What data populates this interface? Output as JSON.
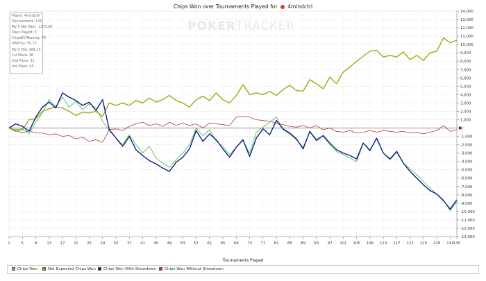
{
  "chart_data": {
    "type": "line",
    "title": "Chips Won over Tournaments Played for",
    "player": "4mindctrl",
    "xlabel": "Tournaments Played",
    "ylabel": "",
    "xlim": [
      1,
      135
    ],
    "ylim": [
      -13000,
      14000
    ],
    "x_ticks": [
      "1",
      "5",
      "9",
      "13",
      "17",
      "21",
      "25",
      "29",
      "33",
      "37",
      "41",
      "45",
      "49",
      "53",
      "57",
      "61",
      "65",
      "69",
      "73",
      "77",
      "81",
      "85",
      "89",
      "93",
      "97",
      "101",
      "105",
      "109",
      "113",
      "117",
      "121",
      "125",
      "129",
      "133",
      "135"
    ],
    "y_ticks": [
      "14,000",
      "13,000",
      "12,000",
      "11,000",
      "10,000",
      "9,000",
      "8,000",
      "7,000",
      "6,000",
      "5,000",
      "4,000",
      "3,000",
      "2,000",
      "1,000",
      "0",
      "-1,000",
      "-2,000",
      "-3,000",
      "-4,000",
      "-5,000",
      "-6,000",
      "-7,000",
      "-8,000",
      "-9,000",
      "-10,000",
      "-11,000",
      "-12,000",
      "-13,000"
    ],
    "grid": true,
    "legend_position": "bottom",
    "series": [
      {
        "name": "Chips Won",
        "color": "#5cc85c",
        "points": [
          [
            1,
            0
          ],
          [
            3,
            -200
          ],
          [
            5,
            -100
          ],
          [
            7,
            -700
          ],
          [
            9,
            700
          ],
          [
            11,
            1800
          ],
          [
            13,
            3400
          ],
          [
            15,
            2600
          ],
          [
            17,
            3700
          ],
          [
            19,
            2500
          ],
          [
            21,
            3200
          ],
          [
            23,
            2200
          ],
          [
            25,
            2900
          ],
          [
            27,
            2400
          ],
          [
            29,
            800
          ],
          [
            31,
            -300
          ],
          [
            33,
            -1200
          ],
          [
            35,
            -2000
          ],
          [
            37,
            -800
          ],
          [
            39,
            -2000
          ],
          [
            41,
            -3000
          ],
          [
            43,
            -2200
          ],
          [
            45,
            -3600
          ],
          [
            47,
            -4200
          ],
          [
            49,
            -4700
          ],
          [
            51,
            -3800
          ],
          [
            53,
            -3000
          ],
          [
            55,
            -2000
          ],
          [
            57,
            0
          ],
          [
            59,
            -900
          ],
          [
            61,
            -200
          ],
          [
            63,
            -1600
          ],
          [
            65,
            -2200
          ],
          [
            67,
            -3200
          ],
          [
            69,
            -2300
          ],
          [
            71,
            -1500
          ],
          [
            73,
            -3000
          ],
          [
            75,
            -500
          ],
          [
            77,
            100
          ],
          [
            79,
            700
          ],
          [
            81,
            1300
          ],
          [
            83,
            -200
          ],
          [
            85,
            -700
          ],
          [
            87,
            -1400
          ],
          [
            89,
            -2300
          ],
          [
            91,
            -500
          ],
          [
            93,
            -1300
          ],
          [
            95,
            -1000
          ],
          [
            97,
            -2000
          ],
          [
            99,
            -2800
          ],
          [
            101,
            -3200
          ],
          [
            103,
            -3600
          ],
          [
            105,
            -4000
          ],
          [
            107,
            -1800
          ],
          [
            109,
            -2600
          ],
          [
            111,
            -1300
          ],
          [
            113,
            -3000
          ],
          [
            115,
            -3800
          ],
          [
            117,
            -2900
          ],
          [
            119,
            -4200
          ],
          [
            121,
            -4900
          ],
          [
            123,
            -5600
          ],
          [
            125,
            -6400
          ],
          [
            127,
            -7200
          ],
          [
            129,
            -7900
          ],
          [
            131,
            -8600
          ],
          [
            133,
            -9900
          ],
          [
            135,
            -8800
          ]
        ]
      },
      {
        "name": "Net Expected Chips Won",
        "color": "#a5a50f",
        "points": [
          [
            1,
            0
          ],
          [
            3,
            -400
          ],
          [
            5,
            -200
          ],
          [
            7,
            1000
          ],
          [
            9,
            1100
          ],
          [
            11,
            2000
          ],
          [
            13,
            2300
          ],
          [
            15,
            2500
          ],
          [
            17,
            2400
          ],
          [
            19,
            2000
          ],
          [
            21,
            1500
          ],
          [
            23,
            1900
          ],
          [
            25,
            1800
          ],
          [
            27,
            2000
          ],
          [
            29,
            1400
          ],
          [
            31,
            3000
          ],
          [
            33,
            2700
          ],
          [
            35,
            3000
          ],
          [
            37,
            2700
          ],
          [
            39,
            3300
          ],
          [
            41,
            3000
          ],
          [
            43,
            3600
          ],
          [
            45,
            3100
          ],
          [
            47,
            3400
          ],
          [
            49,
            3900
          ],
          [
            51,
            3300
          ],
          [
            53,
            3000
          ],
          [
            55,
            2500
          ],
          [
            57,
            3400
          ],
          [
            59,
            3800
          ],
          [
            61,
            3300
          ],
          [
            63,
            4200
          ],
          [
            65,
            3400
          ],
          [
            67,
            3000
          ],
          [
            69,
            3900
          ],
          [
            71,
            5200
          ],
          [
            73,
            4000
          ],
          [
            75,
            4200
          ],
          [
            77,
            4000
          ],
          [
            79,
            4400
          ],
          [
            81,
            3900
          ],
          [
            83,
            4600
          ],
          [
            85,
            5100
          ],
          [
            87,
            4500
          ],
          [
            89,
            4400
          ],
          [
            91,
            5800
          ],
          [
            93,
            5300
          ],
          [
            95,
            4700
          ],
          [
            97,
            6100
          ],
          [
            99,
            5300
          ],
          [
            101,
            6700
          ],
          [
            103,
            7300
          ],
          [
            105,
            8000
          ],
          [
            107,
            8600
          ],
          [
            109,
            9200
          ],
          [
            111,
            9300
          ],
          [
            113,
            8500
          ],
          [
            115,
            8700
          ],
          [
            117,
            8500
          ],
          [
            119,
            9100
          ],
          [
            121,
            8200
          ],
          [
            123,
            8700
          ],
          [
            125,
            8100
          ],
          [
            127,
            9000
          ],
          [
            129,
            9200
          ],
          [
            131,
            10800
          ],
          [
            133,
            10200
          ],
          [
            135,
            10500
          ]
        ]
      },
      {
        "name": "Chips Won With Showdown",
        "color": "#0b1a8c",
        "points": [
          [
            1,
            0
          ],
          [
            3,
            500
          ],
          [
            5,
            200
          ],
          [
            7,
            -400
          ],
          [
            9,
            1300
          ],
          [
            11,
            2500
          ],
          [
            13,
            3100
          ],
          [
            15,
            2400
          ],
          [
            17,
            4200
          ],
          [
            19,
            3700
          ],
          [
            21,
            3300
          ],
          [
            23,
            2700
          ],
          [
            25,
            3100
          ],
          [
            27,
            2100
          ],
          [
            29,
            3400
          ],
          [
            31,
            -200
          ],
          [
            33,
            -1200
          ],
          [
            35,
            -2200
          ],
          [
            37,
            -1000
          ],
          [
            39,
            -2600
          ],
          [
            41,
            -3300
          ],
          [
            43,
            -3900
          ],
          [
            45,
            -4300
          ],
          [
            47,
            -4800
          ],
          [
            49,
            -5200
          ],
          [
            51,
            -4100
          ],
          [
            53,
            -3500
          ],
          [
            55,
            -2500
          ],
          [
            57,
            -300
          ],
          [
            59,
            -1600
          ],
          [
            61,
            -700
          ],
          [
            63,
            -1400
          ],
          [
            65,
            -2500
          ],
          [
            67,
            -3500
          ],
          [
            69,
            -2300
          ],
          [
            71,
            -1400
          ],
          [
            73,
            -3400
          ],
          [
            75,
            -1200
          ],
          [
            77,
            -100
          ],
          [
            79,
            -800
          ],
          [
            81,
            900
          ],
          [
            83,
            -100
          ],
          [
            85,
            -600
          ],
          [
            87,
            -1300
          ],
          [
            89,
            -2500
          ],
          [
            91,
            -400
          ],
          [
            93,
            -1500
          ],
          [
            95,
            -900
          ],
          [
            97,
            -1800
          ],
          [
            99,
            -2600
          ],
          [
            101,
            -3000
          ],
          [
            103,
            -3300
          ],
          [
            105,
            -3700
          ],
          [
            107,
            -1800
          ],
          [
            109,
            -2700
          ],
          [
            111,
            -1200
          ],
          [
            113,
            -3000
          ],
          [
            115,
            -3700
          ],
          [
            117,
            -2800
          ],
          [
            119,
            -4200
          ],
          [
            121,
            -5200
          ],
          [
            123,
            -6000
          ],
          [
            125,
            -6800
          ],
          [
            127,
            -7500
          ],
          [
            129,
            -7900
          ],
          [
            131,
            -8700
          ],
          [
            133,
            -9700
          ],
          [
            135,
            -8600
          ]
        ]
      },
      {
        "name": "Chips Won Without Showdown",
        "color": "#b8373b",
        "points": [
          [
            1,
            0
          ],
          [
            3,
            -300
          ],
          [
            5,
            -600
          ],
          [
            7,
            -300
          ],
          [
            9,
            -600
          ],
          [
            11,
            -600
          ],
          [
            13,
            -800
          ],
          [
            15,
            -700
          ],
          [
            17,
            -1000
          ],
          [
            19,
            -900
          ],
          [
            21,
            -1300
          ],
          [
            23,
            -1100
          ],
          [
            25,
            -1600
          ],
          [
            27,
            -1400
          ],
          [
            29,
            -1700
          ],
          [
            31,
            -200
          ],
          [
            33,
            -100
          ],
          [
            35,
            -300
          ],
          [
            37,
            200
          ],
          [
            39,
            500
          ],
          [
            41,
            700
          ],
          [
            43,
            300
          ],
          [
            45,
            500
          ],
          [
            47,
            200
          ],
          [
            49,
            700
          ],
          [
            51,
            300
          ],
          [
            53,
            600
          ],
          [
            55,
            300
          ],
          [
            57,
            500
          ],
          [
            59,
            0
          ],
          [
            61,
            600
          ],
          [
            63,
            500
          ],
          [
            65,
            400
          ],
          [
            67,
            300
          ],
          [
            69,
            1300
          ],
          [
            71,
            1400
          ],
          [
            73,
            1300
          ],
          [
            75,
            1000
          ],
          [
            77,
            900
          ],
          [
            79,
            800
          ],
          [
            81,
            600
          ],
          [
            83,
            400
          ],
          [
            85,
            200
          ],
          [
            87,
            100
          ],
          [
            89,
            300
          ],
          [
            91,
            0
          ],
          [
            93,
            300
          ],
          [
            95,
            -200
          ],
          [
            97,
            0
          ],
          [
            99,
            -400
          ],
          [
            101,
            -500
          ],
          [
            103,
            -300
          ],
          [
            105,
            -600
          ],
          [
            107,
            -500
          ],
          [
            109,
            -300
          ],
          [
            111,
            -500
          ],
          [
            113,
            -300
          ],
          [
            115,
            -400
          ],
          [
            117,
            -500
          ],
          [
            119,
            -400
          ],
          [
            121,
            -600
          ],
          [
            123,
            -500
          ],
          [
            125,
            -700
          ],
          [
            127,
            -500
          ],
          [
            129,
            -300
          ],
          [
            131,
            300
          ],
          [
            133,
            -400
          ],
          [
            135,
            -200
          ]
        ]
      }
    ]
  },
  "stats": [
    "Player: 4mindctrl",
    "Tournaments: 135",
    "My C Net Won: -1273.00",
    "Days Played: 3",
    "ChipsEV/Tourney: 78",
    "VPIP(%): 55.73",
    "My C Fee: $66.15",
    "1st Place: 38",
    "2nd Place: 51",
    "3rd Place: 45"
  ],
  "watermark": {
    "main": "POKER",
    "light": "TRACKER"
  },
  "title_icon": "pokertracker-logo-icon",
  "zero_marker_icon": "zero-line-marker-icon"
}
